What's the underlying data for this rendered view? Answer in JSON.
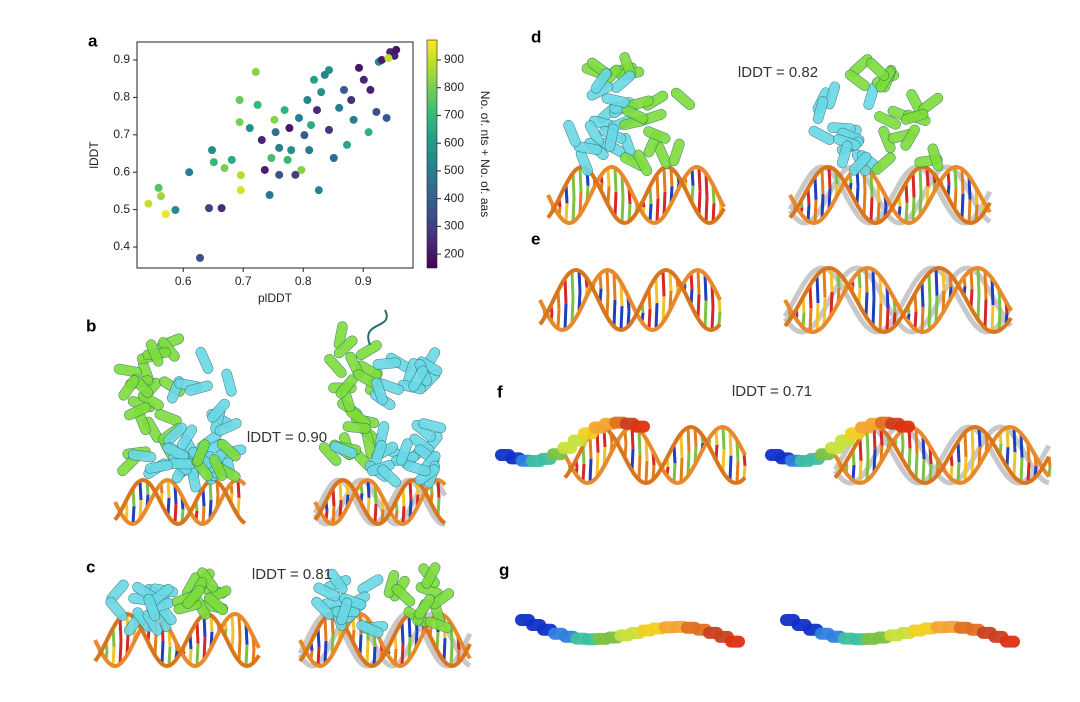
{
  "chart_data": {
    "type": "scatter",
    "panel_label": "a",
    "xlabel": "plDDT",
    "ylabel": "lDDT",
    "colorbar_label": "No. of. nts + No. of. aas",
    "xlim": [
      0.523,
      0.983
    ],
    "ylim": [
      0.344,
      0.948
    ],
    "clim": [
      150,
      972
    ],
    "xticks": [
      0.6,
      0.7,
      0.8,
      0.9
    ],
    "yticks": [
      0.4,
      0.5,
      0.6,
      0.7,
      0.8,
      0.9
    ],
    "cticks": [
      200,
      300,
      400,
      500,
      600,
      700,
      800,
      900
    ],
    "colormap": "viridis",
    "x": [
      0.542,
      0.559,
      0.563,
      0.571,
      0.587,
      0.61,
      0.628,
      0.643,
      0.648,
      0.651,
      0.664,
      0.669,
      0.681,
      0.694,
      0.696,
      0.696,
      0.694,
      0.711,
      0.721,
      0.724,
      0.731,
      0.736,
      0.744,
      0.747,
      0.752,
      0.754,
      0.76,
      0.76,
      0.769,
      0.774,
      0.777,
      0.78,
      0.787,
      0.793,
      0.797,
      0.802,
      0.807,
      0.81,
      0.813,
      0.818,
      0.823,
      0.826,
      0.83,
      0.836,
      0.843,
      0.843,
      0.851,
      0.86,
      0.868,
      0.873,
      0.88,
      0.884,
      0.893,
      0.901,
      0.909,
      0.912,
      0.922,
      0.926,
      0.931,
      0.939,
      0.945,
      0.952,
      0.955,
      0.942
    ],
    "values": [
      0.516,
      0.558,
      0.536,
      0.488,
      0.499,
      0.6,
      0.371,
      0.504,
      0.659,
      0.627,
      0.504,
      0.611,
      0.633,
      0.793,
      0.552,
      0.592,
      0.734,
      0.718,
      0.868,
      0.78,
      0.686,
      0.606,
      0.539,
      0.638,
      0.74,
      0.707,
      0.665,
      0.593,
      0.766,
      0.633,
      0.718,
      0.659,
      0.593,
      0.745,
      0.606,
      0.699,
      0.793,
      0.659,
      0.726,
      0.847,
      0.766,
      0.552,
      0.814,
      0.86,
      0.713,
      0.873,
      0.638,
      0.772,
      0.82,
      0.673,
      0.793,
      0.74,
      0.879,
      0.847,
      0.707,
      0.82,
      0.761,
      0.895,
      0.9,
      0.745,
      0.921,
      0.911,
      0.927,
      0.905
    ],
    "color_values": [
      900,
      750,
      850,
      950,
      550,
      500,
      350,
      300,
      550,
      700,
      250,
      800,
      650,
      780,
      920,
      880,
      800,
      550,
      820,
      700,
      230,
      220,
      480,
      720,
      820,
      450,
      520,
      350,
      680,
      700,
      200,
      560,
      300,
      500,
      820,
      380,
      530,
      480,
      660,
      620,
      250,
      520,
      570,
      520,
      280,
      560,
      430,
      500,
      380,
      640,
      260,
      500,
      200,
      240,
      680,
      230,
      350,
      540,
      210,
      380,
      230,
      220,
      200,
      900
    ]
  },
  "panels": [
    {
      "label": "b",
      "annotation": "lDDT = 0.90"
    },
    {
      "label": "c",
      "annotation": "lDDT = 0.81"
    },
    {
      "label": "d",
      "annotation": "lDDT = 0.82"
    },
    {
      "label": "e"
    },
    {
      "label": "f",
      "annotation": "lDDT = 0.71"
    },
    {
      "label": "g"
    }
  ]
}
